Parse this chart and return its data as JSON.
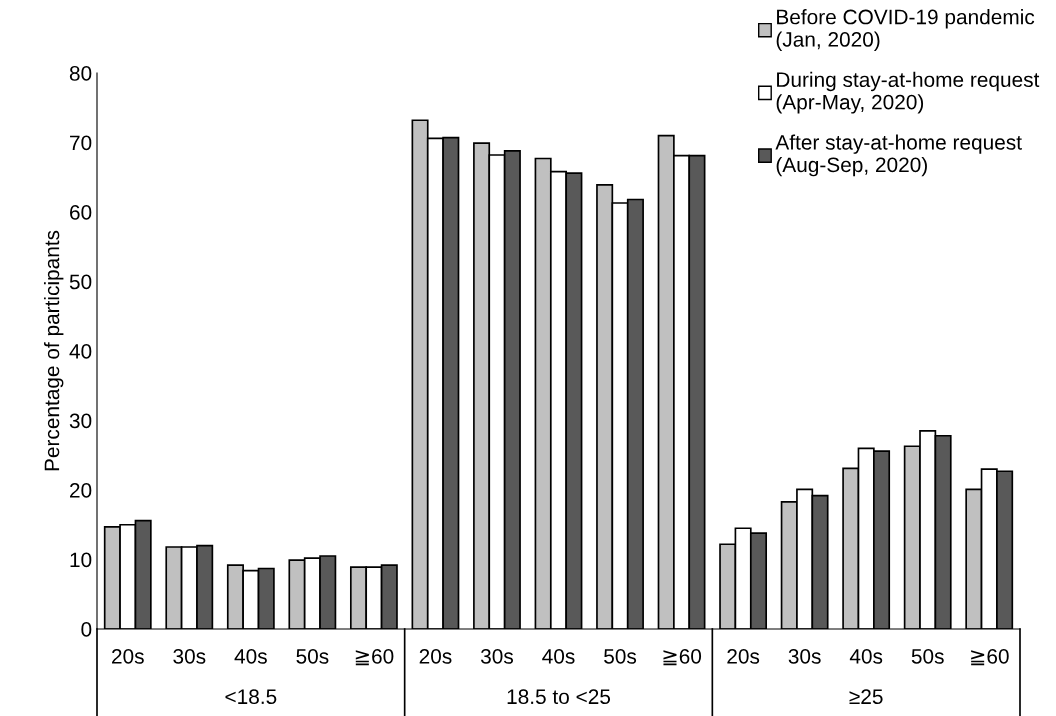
{
  "chart_data": {
    "type": "bar",
    "ylabel": "Percentage of participants",
    "categories": [
      "20s",
      "30s",
      "40s",
      "50s",
      "≧60",
      "20s",
      "30s",
      "40s",
      "50s",
      "≧60",
      "20s",
      "30s",
      "40s",
      "50s",
      "≧60"
    ],
    "annotations": [
      "<18.5",
      "18.5 to <25",
      "≥25"
    ],
    "series": [
      {
        "name": "Before COVID-19 pandemic\n(Jan, 2020)",
        "color": "#c0c0c0",
        "values": [
          14.7,
          11.8,
          9.2,
          9.9,
          8.9,
          73.2,
          69.9,
          67.7,
          63.9,
          71.0,
          12.2,
          18.3,
          23.1,
          26.3,
          20.1
        ]
      },
      {
        "name": "During stay-at-home request\n(Apr-May, 2020)",
        "color": "#ffffff",
        "values": [
          15.0,
          11.8,
          8.4,
          10.2,
          8.9,
          70.6,
          68.2,
          65.8,
          61.3,
          68.1,
          14.5,
          20.1,
          26.0,
          28.5,
          23.0
        ]
      },
      {
        "name": "After stay-at-home request\n(Aug-Sep, 2020)",
        "color": "#595959",
        "values": [
          15.6,
          12.0,
          8.7,
          10.5,
          9.2,
          70.7,
          68.8,
          65.6,
          61.8,
          68.1,
          13.8,
          19.2,
          25.6,
          27.8,
          22.7
        ]
      }
    ],
    "ylim": [
      0,
      80
    ],
    "yticks": [
      0,
      10,
      20,
      30,
      40,
      50,
      60,
      70,
      80
    ],
    "grid": false,
    "legend": "top right"
  }
}
